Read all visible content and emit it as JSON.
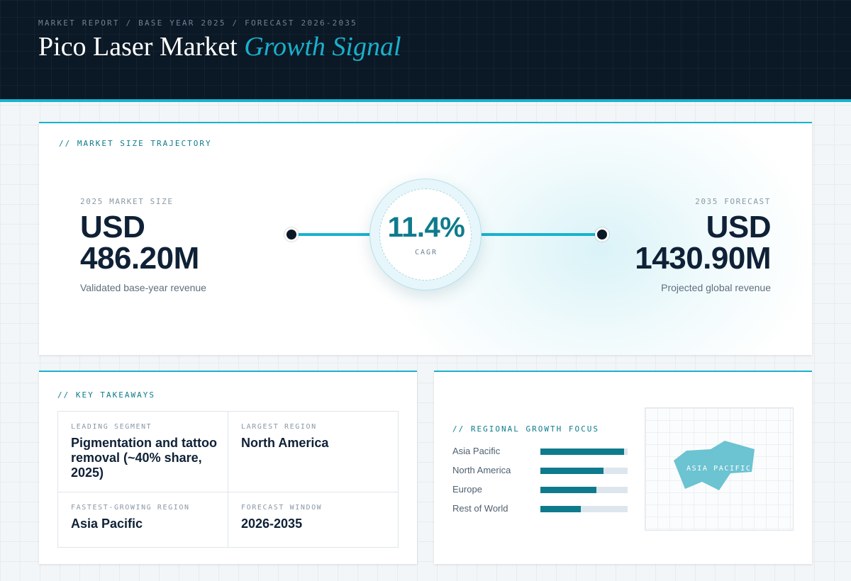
{
  "header": {
    "breadcrumb": "MARKET REPORT / BASE YEAR 2025 / FORECAST 2026-2035",
    "title_main": "Pico Laser Market",
    "title_accent": "Growth Signal"
  },
  "trajectory": {
    "section_label": "// MARKET SIZE TRAJECTORY",
    "base": {
      "kicker": "2025 MARKET SIZE",
      "currency": "USD",
      "value": "486.20M",
      "caption": "Validated base-year revenue"
    },
    "forecast": {
      "kicker": "2035 FORECAST",
      "currency": "USD",
      "value": "1430.90M",
      "caption": "Projected global revenue"
    },
    "cagr": {
      "value": "11.4%",
      "label": "CAGR"
    }
  },
  "takeaways": {
    "section_label": "// KEY TAKEAWAYS",
    "items": [
      {
        "kicker": "LEADING SEGMENT",
        "value": "Pigmentation and tattoo removal (~40% share, 2025)"
      },
      {
        "kicker": "LARGEST REGION",
        "value": "North America"
      },
      {
        "kicker": "FASTEST-GROWING REGION",
        "value": "Asia Pacific"
      },
      {
        "kicker": "FORECAST WINDOW",
        "value": "2026-2035"
      }
    ]
  },
  "regional": {
    "section_label": "// REGIONAL GROWTH FOCUS",
    "regions": [
      {
        "name": "Asia Pacific",
        "level": 0.96
      },
      {
        "name": "North America",
        "level": 0.72
      },
      {
        "name": "Europe",
        "level": 0.64
      },
      {
        "name": "Rest of World",
        "level": 0.46
      }
    ],
    "map_label": "ASIA PACIFIC",
    "colors": {
      "bar": "#0e7b8c",
      "track": "#dde6ec",
      "map_region": "#6cc3d1"
    }
  }
}
